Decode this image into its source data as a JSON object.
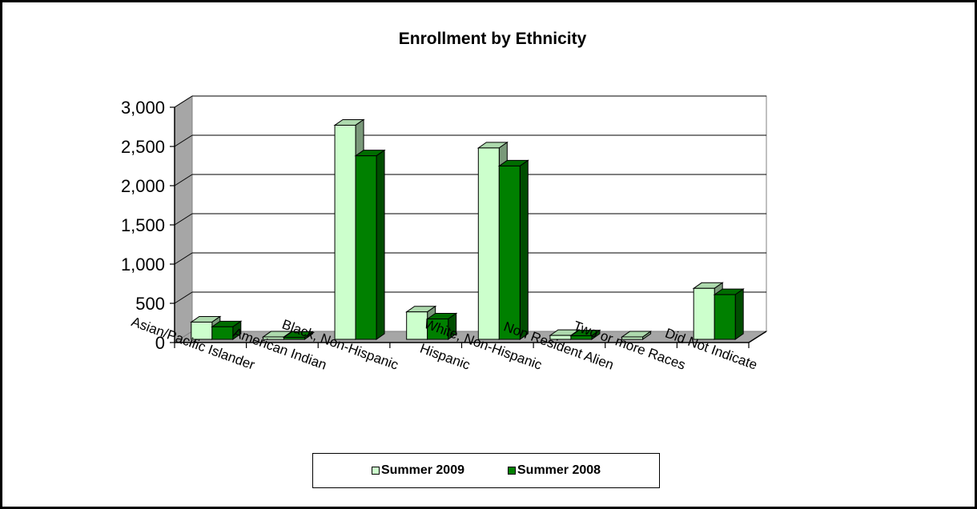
{
  "chart_data": {
    "type": "bar",
    "title": "Enrollment by Ethnicity",
    "categories": [
      "Asian/Pacific Islander",
      "American Indian",
      "Black, Non-Hispanic",
      "Hispanic",
      "White, Non-Hispanic",
      "Non Resident Alien",
      "Two or more Races",
      "Did Not Indicate"
    ],
    "series": [
      {
        "name": "Summer 2009",
        "values": [
          220,
          30,
          2730,
          350,
          2440,
          50,
          30,
          650
        ],
        "color": "#ccffcc"
      },
      {
        "name": "Summer 2008",
        "values": [
          160,
          25,
          2340,
          260,
          2210,
          45,
          0,
          570
        ],
        "color": "#008000"
      }
    ],
    "ylim": [
      0,
      3000
    ],
    "yticks": [
      "0",
      "500",
      "1,000",
      "1,500",
      "2,000",
      "2,500",
      "3,000"
    ],
    "ytick_values": [
      0,
      500,
      1000,
      1500,
      2000,
      2500,
      3000
    ],
    "grid": true,
    "legend_position": "bottom",
    "style": "3d-clustered-bar"
  }
}
